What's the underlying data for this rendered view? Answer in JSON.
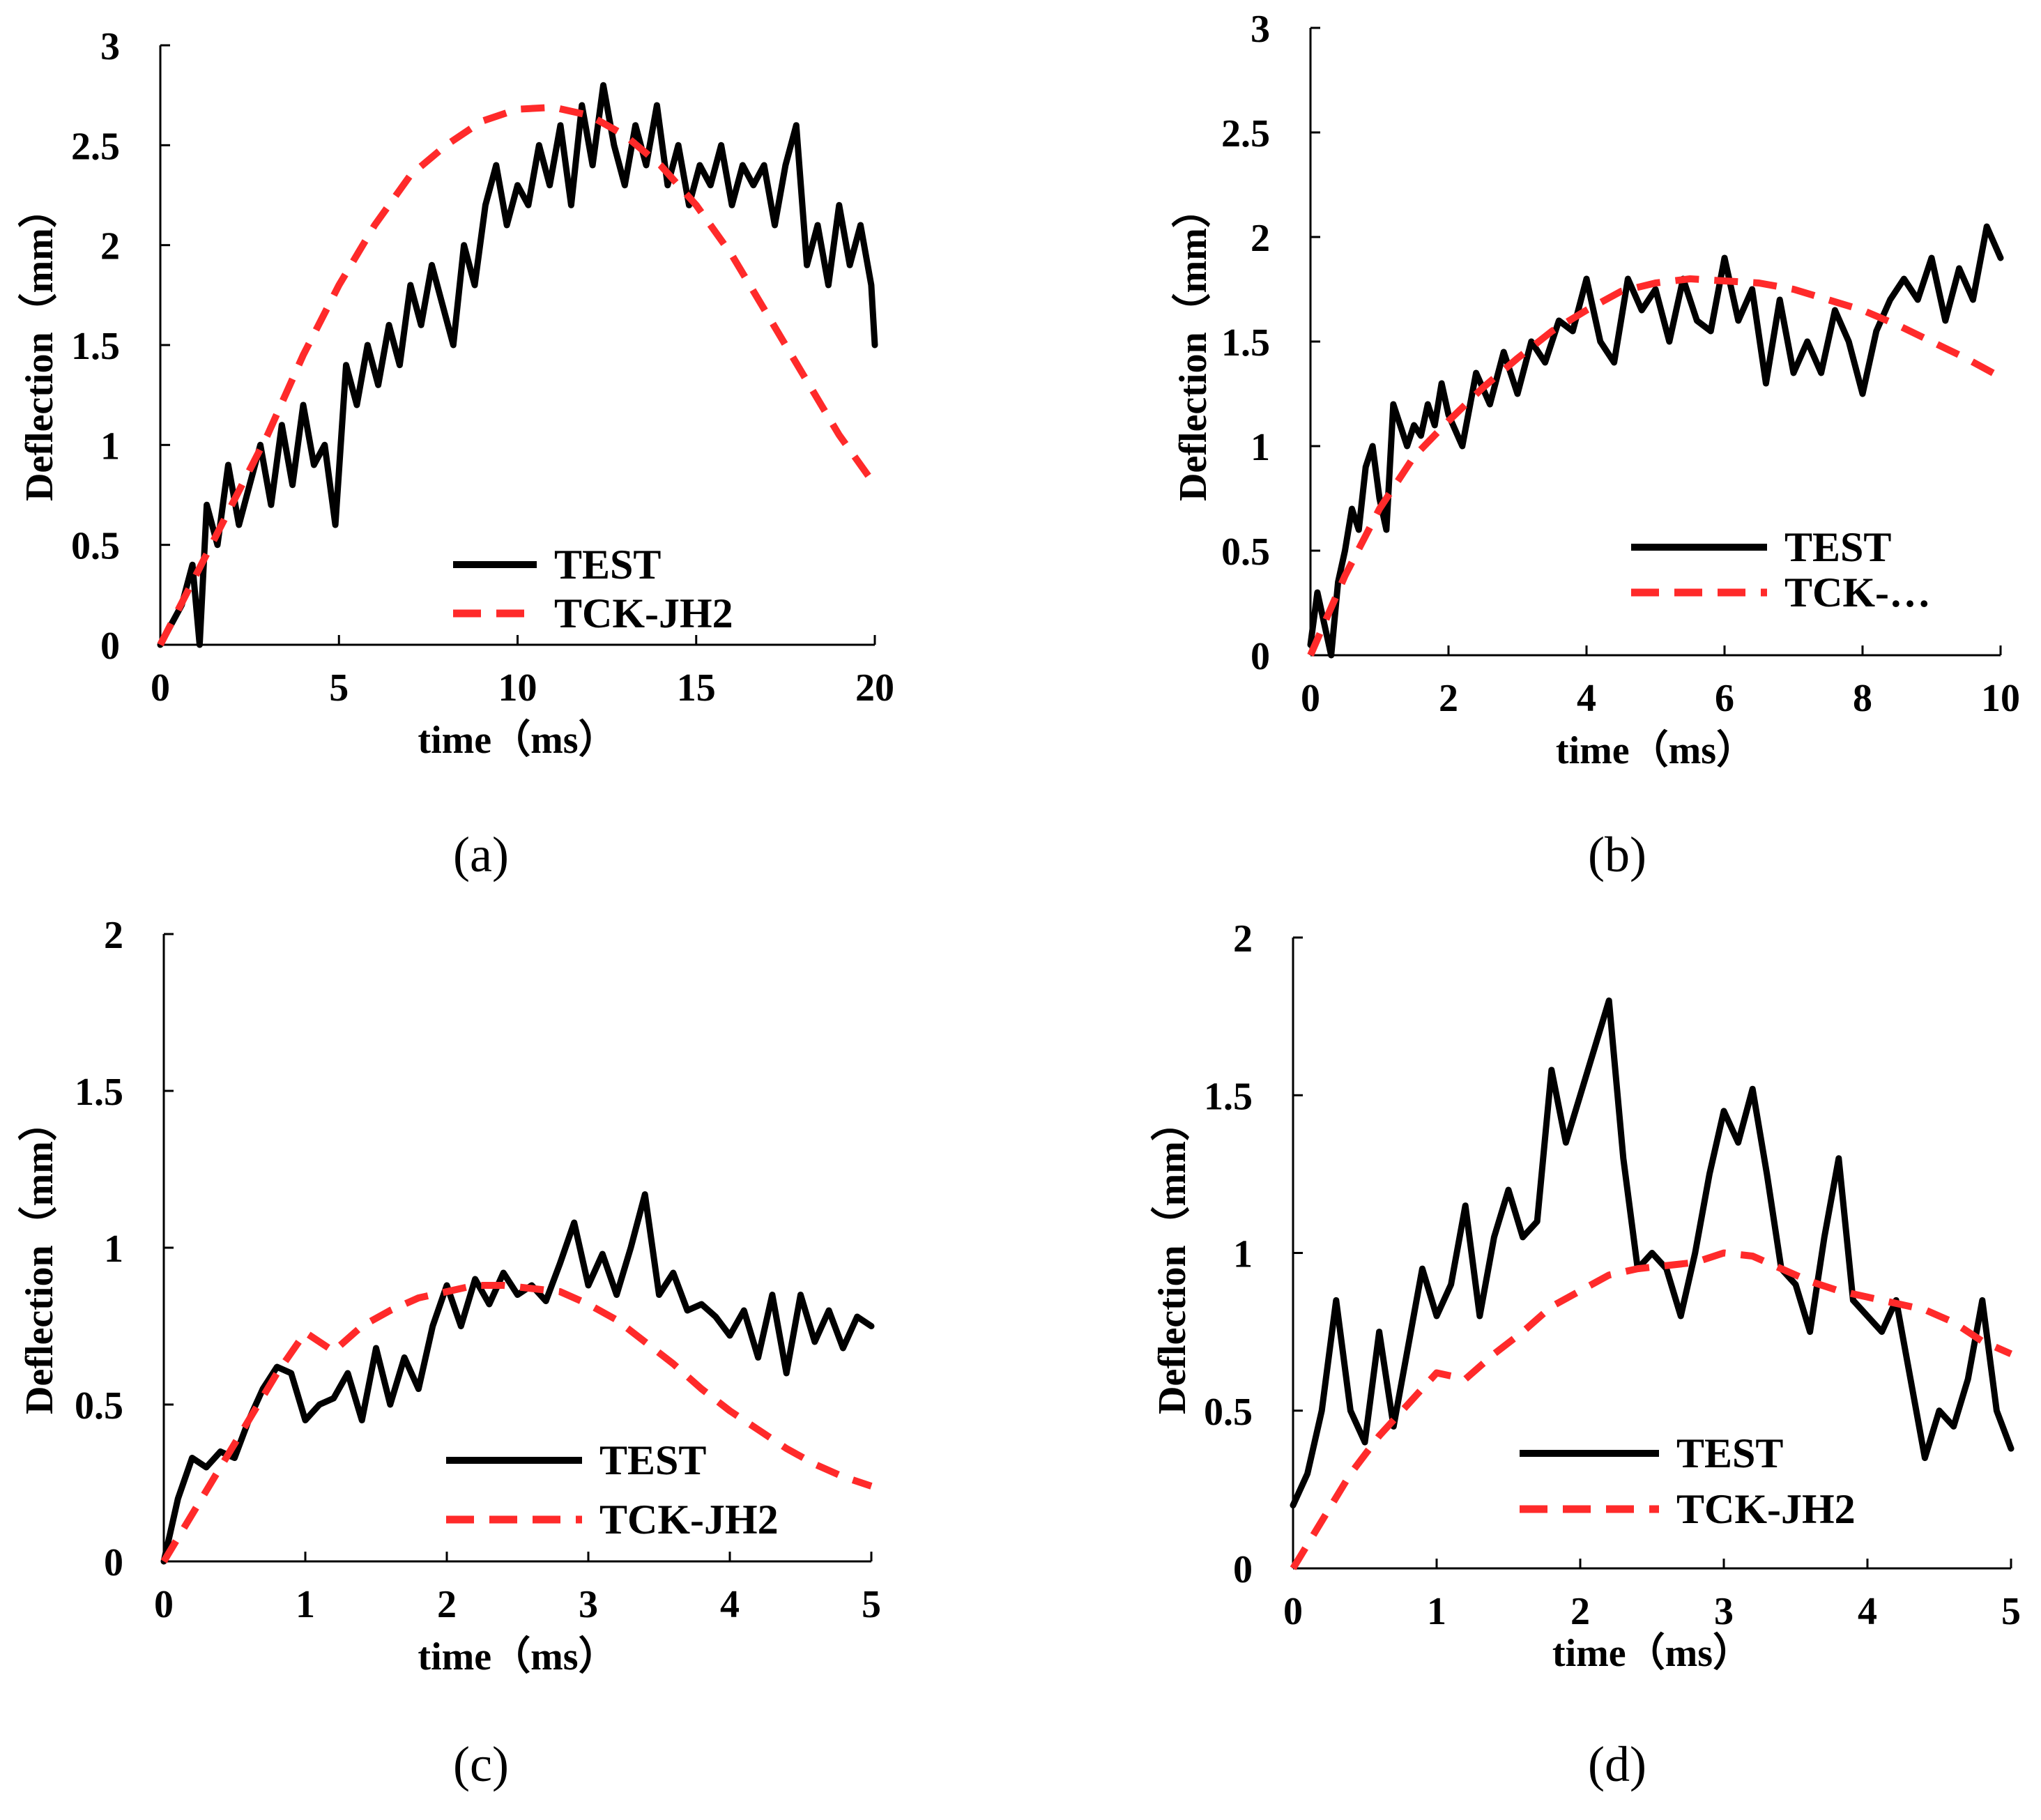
{
  "chart_data": [
    {
      "panel": "a",
      "caption": "(a)",
      "type": "line",
      "xlabel": "time（ms）",
      "ylabel": "Deflection（mm）",
      "xlim": [
        0,
        20
      ],
      "ylim": [
        0,
        3
      ],
      "xticks": [
        "0",
        "5",
        "10",
        "15",
        "20"
      ],
      "yticks": [
        "0",
        "0.5",
        "1",
        "1.5",
        "2",
        "2.5",
        "3"
      ],
      "legend": [
        "TEST",
        "TCK-JH2"
      ],
      "series": [
        {
          "name": "TEST",
          "x": [
            0,
            0.3,
            0.6,
            0.9,
            1.1,
            1.3,
            1.6,
            1.9,
            2.2,
            2.5,
            2.8,
            3.1,
            3.4,
            3.7,
            4.0,
            4.3,
            4.6,
            4.9,
            5.2,
            5.5,
            5.8,
            6.1,
            6.4,
            6.7,
            7.0,
            7.3,
            7.6,
            7.9,
            8.2,
            8.5,
            8.8,
            9.1,
            9.4,
            9.7,
            10.0,
            10.3,
            10.6,
            10.9,
            11.2,
            11.5,
            11.8,
            12.1,
            12.4,
            12.7,
            13.0,
            13.3,
            13.6,
            13.9,
            14.2,
            14.5,
            14.8,
            15.1,
            15.4,
            15.7,
            16.0,
            16.3,
            16.6,
            16.9,
            17.2,
            17.5,
            17.8,
            18.1,
            18.4,
            18.7,
            19.0,
            19.3,
            19.6,
            19.9,
            20.0
          ],
          "y": [
            0.0,
            0.1,
            0.2,
            0.4,
            0.0,
            0.7,
            0.5,
            0.9,
            0.6,
            0.8,
            1.0,
            0.7,
            1.1,
            0.8,
            1.2,
            0.9,
            1.0,
            0.6,
            1.4,
            1.2,
            1.5,
            1.3,
            1.6,
            1.4,
            1.8,
            1.6,
            1.9,
            1.7,
            1.5,
            2.0,
            1.8,
            2.2,
            2.4,
            2.1,
            2.3,
            2.2,
            2.5,
            2.3,
            2.6,
            2.2,
            2.7,
            2.4,
            2.8,
            2.5,
            2.3,
            2.6,
            2.4,
            2.7,
            2.3,
            2.5,
            2.2,
            2.4,
            2.3,
            2.5,
            2.2,
            2.4,
            2.3,
            2.4,
            2.1,
            2.4,
            2.6,
            1.9,
            2.1,
            1.8,
            2.2,
            1.9,
            2.1,
            1.8,
            1.5
          ]
        },
        {
          "name": "TCK-JH2",
          "x": [
            0,
            1,
            2,
            3,
            4,
            5,
            6,
            7,
            8,
            9,
            10,
            11,
            12,
            13,
            14,
            15,
            16,
            17,
            18,
            19,
            20
          ],
          "y": [
            0.0,
            0.35,
            0.7,
            1.05,
            1.45,
            1.8,
            2.1,
            2.35,
            2.5,
            2.62,
            2.68,
            2.69,
            2.65,
            2.55,
            2.4,
            2.2,
            1.95,
            1.65,
            1.35,
            1.05,
            0.8
          ]
        }
      ]
    },
    {
      "panel": "b",
      "caption": "(b)",
      "type": "line",
      "xlabel": "time（ms）",
      "ylabel": "Deflection（mm）",
      "xlim": [
        0,
        10
      ],
      "ylim": [
        0,
        3
      ],
      "xticks": [
        "0",
        "2",
        "4",
        "6",
        "8",
        "10"
      ],
      "yticks": [
        "0",
        "0.5",
        "1",
        "1.5",
        "2",
        "2.5",
        "3"
      ],
      "legend": [
        "TEST",
        "TCK-…"
      ],
      "series": [
        {
          "name": "TEST",
          "x": [
            0,
            0.1,
            0.2,
            0.3,
            0.4,
            0.5,
            0.6,
            0.7,
            0.8,
            0.9,
            1.0,
            1.1,
            1.2,
            1.3,
            1.4,
            1.5,
            1.6,
            1.7,
            1.8,
            1.9,
            2.0,
            2.2,
            2.4,
            2.6,
            2.8,
            3.0,
            3.2,
            3.4,
            3.6,
            3.8,
            4.0,
            4.2,
            4.4,
            4.6,
            4.8,
            5.0,
            5.2,
            5.4,
            5.6,
            5.8,
            6.0,
            6.2,
            6.4,
            6.6,
            6.8,
            7.0,
            7.2,
            7.4,
            7.6,
            7.8,
            8.0,
            8.2,
            8.4,
            8.6,
            8.8,
            9.0,
            9.2,
            9.4,
            9.6,
            9.8,
            10.0
          ],
          "y": [
            0.05,
            0.3,
            0.15,
            0.0,
            0.35,
            0.5,
            0.7,
            0.6,
            0.9,
            1.0,
            0.75,
            0.6,
            1.2,
            1.1,
            1.0,
            1.1,
            1.05,
            1.2,
            1.1,
            1.3,
            1.15,
            1.0,
            1.35,
            1.2,
            1.45,
            1.25,
            1.5,
            1.4,
            1.6,
            1.55,
            1.8,
            1.5,
            1.4,
            1.8,
            1.65,
            1.75,
            1.5,
            1.8,
            1.6,
            1.55,
            1.9,
            1.6,
            1.75,
            1.3,
            1.7,
            1.35,
            1.5,
            1.35,
            1.65,
            1.5,
            1.25,
            1.55,
            1.7,
            1.8,
            1.7,
            1.9,
            1.6,
            1.85,
            1.7,
            2.05,
            1.9
          ]
        },
        {
          "name": "TCK-JH2",
          "x": [
            0,
            0.5,
            1,
            1.5,
            2,
            2.5,
            3,
            3.5,
            4,
            4.5,
            5,
            5.5,
            6,
            6.5,
            7,
            7.5,
            8,
            8.5,
            9,
            9.5,
            10
          ],
          "y": [
            0.0,
            0.38,
            0.7,
            0.95,
            1.12,
            1.28,
            1.42,
            1.55,
            1.65,
            1.74,
            1.78,
            1.8,
            1.79,
            1.78,
            1.75,
            1.7,
            1.65,
            1.58,
            1.5,
            1.42,
            1.33
          ]
        }
      ]
    },
    {
      "panel": "c",
      "caption": "(c)",
      "type": "line",
      "xlabel": "time（ms）",
      "ylabel": "Deflection（mm）",
      "xlim": [
        0,
        5
      ],
      "ylim": [
        0,
        2
      ],
      "xticks": [
        "0",
        "1",
        "2",
        "3",
        "4",
        "5"
      ],
      "yticks": [
        "0",
        "0.5",
        "1",
        "1.5",
        "2"
      ],
      "legend": [
        "TEST",
        "TCK-JH2"
      ],
      "series": [
        {
          "name": "TEST",
          "x": [
            0,
            0.1,
            0.2,
            0.3,
            0.4,
            0.5,
            0.6,
            0.7,
            0.8,
            0.9,
            1.0,
            1.1,
            1.2,
            1.3,
            1.4,
            1.5,
            1.6,
            1.7,
            1.8,
            1.9,
            2.0,
            2.1,
            2.2,
            2.3,
            2.4,
            2.5,
            2.6,
            2.7,
            2.8,
            2.9,
            3.0,
            3.1,
            3.2,
            3.3,
            3.4,
            3.5,
            3.6,
            3.7,
            3.8,
            3.9,
            4.0,
            4.1,
            4.2,
            4.3,
            4.4,
            4.5,
            4.6,
            4.7,
            4.8,
            4.9,
            5.0
          ],
          "y": [
            0.0,
            0.2,
            0.33,
            0.3,
            0.35,
            0.33,
            0.45,
            0.55,
            0.62,
            0.6,
            0.45,
            0.5,
            0.52,
            0.6,
            0.45,
            0.68,
            0.5,
            0.65,
            0.55,
            0.75,
            0.88,
            0.75,
            0.9,
            0.82,
            0.92,
            0.85,
            0.88,
            0.83,
            0.95,
            1.08,
            0.88,
            0.98,
            0.85,
            1.0,
            1.17,
            0.85,
            0.92,
            0.8,
            0.82,
            0.78,
            0.72,
            0.8,
            0.65,
            0.85,
            0.6,
            0.85,
            0.7,
            0.8,
            0.68,
            0.78,
            0.75
          ]
        },
        {
          "name": "TCK-JH2",
          "x": [
            0,
            0.2,
            0.4,
            0.6,
            0.8,
            1.0,
            1.2,
            1.4,
            1.6,
            1.8,
            2.0,
            2.2,
            2.4,
            2.6,
            2.8,
            3.0,
            3.2,
            3.4,
            3.6,
            3.8,
            4.0,
            4.2,
            4.4,
            4.6,
            4.8,
            5.0
          ],
          "y": [
            0.0,
            0.15,
            0.3,
            0.45,
            0.6,
            0.73,
            0.67,
            0.75,
            0.8,
            0.84,
            0.86,
            0.88,
            0.88,
            0.87,
            0.86,
            0.82,
            0.77,
            0.7,
            0.63,
            0.55,
            0.48,
            0.42,
            0.36,
            0.31,
            0.27,
            0.24
          ]
        }
      ]
    },
    {
      "panel": "d",
      "caption": "(d)",
      "type": "line",
      "xlabel": "time（ms）",
      "ylabel": "Deflection（mm）",
      "xlim": [
        0,
        5
      ],
      "ylim": [
        0,
        2
      ],
      "xticks": [
        "0",
        "1",
        "2",
        "3",
        "4",
        "5"
      ],
      "yticks": [
        "0",
        "0.5",
        "1",
        "1.5",
        "2"
      ],
      "legend": [
        "TEST",
        "TCK-JH2"
      ],
      "series": [
        {
          "name": "TEST",
          "x": [
            0,
            0.1,
            0.2,
            0.3,
            0.4,
            0.5,
            0.6,
            0.7,
            0.8,
            0.9,
            1.0,
            1.1,
            1.2,
            1.3,
            1.4,
            1.5,
            1.6,
            1.7,
            1.8,
            1.9,
            2.0,
            2.1,
            2.2,
            2.3,
            2.4,
            2.5,
            2.6,
            2.7,
            2.8,
            2.9,
            3.0,
            3.1,
            3.2,
            3.3,
            3.4,
            3.5,
            3.6,
            3.7,
            3.8,
            3.9,
            4.0,
            4.1,
            4.2,
            4.3,
            4.4,
            4.5,
            4.6,
            4.7,
            4.8,
            4.9,
            5.0
          ],
          "y": [
            0.2,
            0.3,
            0.5,
            0.85,
            0.5,
            0.4,
            0.75,
            0.45,
            0.7,
            0.95,
            0.8,
            0.9,
            1.15,
            0.8,
            1.05,
            1.2,
            1.05,
            1.1,
            1.58,
            1.35,
            1.5,
            1.65,
            1.8,
            1.3,
            0.95,
            1.0,
            0.95,
            0.8,
            1.0,
            1.25,
            1.45,
            1.35,
            1.52,
            1.25,
            0.95,
            0.9,
            0.75,
            1.05,
            1.3,
            0.85,
            0.8,
            0.75,
            0.85,
            0.6,
            0.35,
            0.5,
            0.45,
            0.6,
            0.85,
            0.5,
            0.38
          ]
        },
        {
          "name": "TCK-JH2",
          "x": [
            0,
            0.2,
            0.4,
            0.6,
            0.8,
            1.0,
            1.2,
            1.4,
            1.6,
            1.8,
            2.0,
            2.2,
            2.4,
            2.6,
            2.8,
            3.0,
            3.2,
            3.4,
            3.6,
            3.8,
            4.0,
            4.2,
            4.4,
            4.6,
            4.8,
            5.0
          ],
          "y": [
            0.0,
            0.15,
            0.3,
            0.42,
            0.52,
            0.62,
            0.6,
            0.68,
            0.75,
            0.83,
            0.88,
            0.93,
            0.95,
            0.96,
            0.97,
            1.0,
            0.99,
            0.95,
            0.91,
            0.88,
            0.86,
            0.84,
            0.82,
            0.78,
            0.72,
            0.68
          ]
        }
      ]
    }
  ]
}
